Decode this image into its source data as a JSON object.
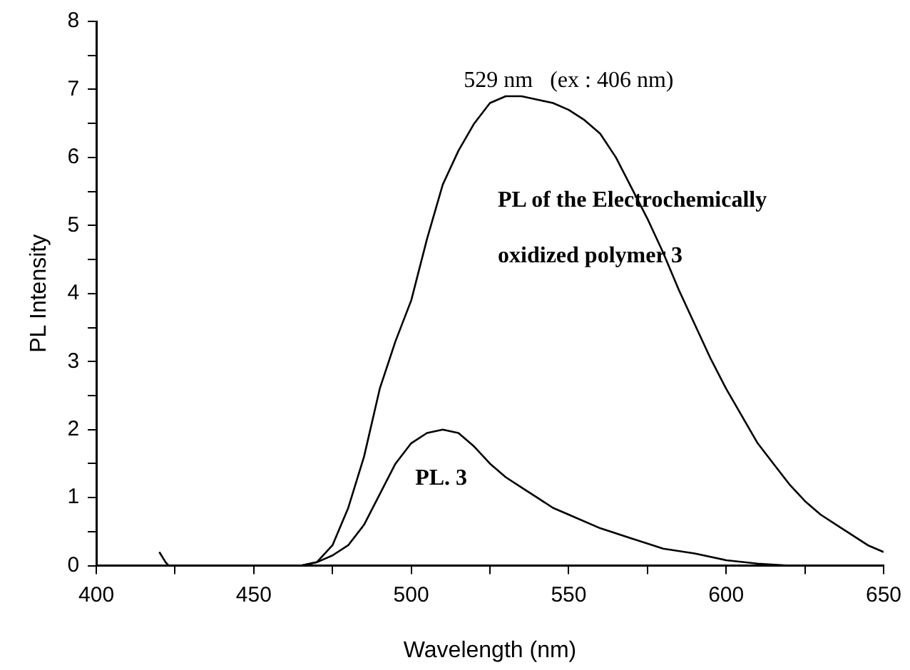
{
  "chart_data": {
    "type": "line",
    "xlabel": "Wavelength (nm)",
    "ylabel": "PL Intensity",
    "annotations": [
      "529 nm   (ex : 406 nm)"
    ],
    "xlim": [
      400,
      650
    ],
    "xticks": [
      400,
      {
        "value": 425,
        "label": null
      },
      450,
      {
        "value": 475,
        "label": null
      },
      500,
      {
        "value": 525,
        "label": null
      },
      550,
      {
        "value": 575,
        "label": null
      },
      600,
      {
        "value": 625,
        "label": null
      },
      650
    ],
    "ylim": [
      0,
      8
    ],
    "yticks": [
      0,
      {
        "value": 0.5,
        "label": null
      },
      1,
      {
        "value": 1.5,
        "label": null
      },
      2,
      {
        "value": 2.5,
        "label": null
      },
      3,
      {
        "value": 3.5,
        "label": null
      },
      4,
      {
        "value": 4.5,
        "label": null
      },
      5,
      {
        "value": 5.5,
        "label": null
      },
      6,
      {
        "value": 6.5,
        "label": null
      },
      7,
      {
        "value": 7.5,
        "label": null
      },
      8
    ],
    "grid": false,
    "legend": false,
    "marker": "none",
    "line_style": "solid",
    "series": [
      {
        "name": "PL of the Electrochemically oxidized polymer 3",
        "color": "#000000",
        "x": [
          465,
          470,
          475,
          480,
          485,
          490,
          495,
          500,
          505,
          510,
          515,
          520,
          525,
          530,
          535,
          540,
          545,
          550,
          555,
          560,
          565,
          570,
          575,
          580,
          585,
          590,
          595,
          600,
          605,
          610,
          615,
          620,
          625,
          630,
          635,
          640,
          645,
          650
        ],
        "values": [
          0,
          0.05,
          0.3,
          0.85,
          1.6,
          2.6,
          3.3,
          3.9,
          4.8,
          5.6,
          6.1,
          6.5,
          6.8,
          6.9,
          6.9,
          6.85,
          6.8,
          6.7,
          6.55,
          6.35,
          6.0,
          5.55,
          5.1,
          4.6,
          4.05,
          3.55,
          3.05,
          2.6,
          2.2,
          1.8,
          1.5,
          1.2,
          0.95,
          0.75,
          0.6,
          0.45,
          0.3,
          0.2
        ]
      },
      {
        "name": "PL. 3",
        "color": "#000000",
        "x": [
          420,
          422,
          423,
          430,
          440,
          450,
          460,
          465,
          470,
          475,
          480,
          485,
          490,
          495,
          500,
          505,
          510,
          515,
          520,
          525,
          530,
          535,
          540,
          545,
          550,
          560,
          570,
          580,
          590,
          600,
          610,
          620,
          630,
          640,
          650
        ],
        "values": [
          0.2,
          0.05,
          0,
          0,
          0,
          0,
          0,
          0,
          0.05,
          0.15,
          0.3,
          0.6,
          1.05,
          1.5,
          1.8,
          1.95,
          2.0,
          1.95,
          1.75,
          1.5,
          1.3,
          1.15,
          1.0,
          0.85,
          0.75,
          0.55,
          0.4,
          0.25,
          0.18,
          0.08,
          0.03,
          0,
          0,
          0,
          0
        ]
      }
    ]
  }
}
